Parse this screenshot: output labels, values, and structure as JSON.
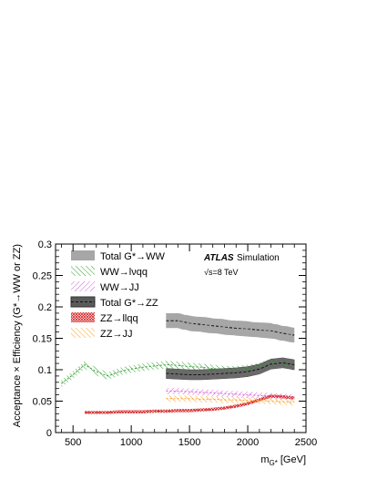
{
  "chart_data": {
    "type": "line",
    "experiment": "ATLAS",
    "label_suffix": "Simulation",
    "energy_label": "√s=8 TeV",
    "xlabel_main": "m",
    "xlabel_sub": "G*",
    "xlabel_unit": "[GeV]",
    "ylabel": "Acceptance × Efficiency (G*→WW or ZZ)",
    "xlim": [
      350,
      2500
    ],
    "ylim": [
      0,
      0.3
    ],
    "xticks": [
      500,
      1000,
      1500,
      2000,
      2500
    ],
    "yticks": [
      0,
      0.05,
      0.1,
      0.15,
      0.2,
      0.25,
      0.3
    ],
    "ytick_labels": [
      "0",
      "0.05",
      "0.1",
      "0.15",
      "0.2",
      "0.25",
      "0.3"
    ],
    "legend_position": "top-left",
    "series": [
      {
        "name": "Total G*→WW",
        "color": "#222222",
        "style": "hatched-band",
        "x": [
          1300,
          1400,
          1500,
          1600,
          1700,
          1800,
          1900,
          2000,
          2100,
          2200,
          2300,
          2400
        ],
        "y": [
          0.178,
          0.178,
          0.174,
          0.172,
          0.17,
          0.168,
          0.166,
          0.165,
          0.163,
          0.162,
          0.158,
          0.155
        ],
        "err": [
          0.012,
          0.012,
          0.012,
          0.012,
          0.012,
          0.012,
          0.012,
          0.012,
          0.012,
          0.012,
          0.012,
          0.012
        ]
      },
      {
        "name": "WW→lνqq",
        "color": "#2ca02c",
        "style": "hatched-band",
        "x": [
          400,
          500,
          600,
          700,
          800,
          900,
          1000,
          1100,
          1200,
          1300,
          1400,
          1500,
          1600,
          1700,
          1800,
          1900,
          2000,
          2100,
          2200,
          2300,
          2400
        ],
        "y": [
          0.078,
          0.092,
          0.108,
          0.097,
          0.09,
          0.097,
          0.101,
          0.104,
          0.106,
          0.108,
          0.107,
          0.105,
          0.104,
          0.102,
          0.1,
          0.1,
          0.102,
          0.105,
          0.112,
          0.11,
          0.105
        ],
        "err": [
          0.006,
          0.006,
          0.006,
          0.006,
          0.006,
          0.006,
          0.006,
          0.006,
          0.006,
          0.006,
          0.006,
          0.006,
          0.006,
          0.006,
          0.006,
          0.006,
          0.006,
          0.006,
          0.006,
          0.006,
          0.006
        ]
      },
      {
        "name": "WW→JJ",
        "color": "#d65fd6",
        "style": "hatched-band",
        "x": [
          1300,
          1400,
          1500,
          1600,
          1700,
          1800,
          1900,
          2000,
          2100,
          2200,
          2300,
          2400
        ],
        "y": [
          0.066,
          0.066,
          0.065,
          0.064,
          0.063,
          0.062,
          0.061,
          0.06,
          0.059,
          0.058,
          0.057,
          0.056
        ],
        "err": [
          0.005,
          0.005,
          0.005,
          0.005,
          0.005,
          0.005,
          0.005,
          0.005,
          0.005,
          0.005,
          0.005,
          0.005
        ]
      },
      {
        "name": "Total G*→ZZ",
        "color": "#444444",
        "style": "filled-band",
        "x": [
          1300,
          1400,
          1500,
          1600,
          1700,
          1800,
          1900,
          2000,
          2100,
          2200,
          2300,
          2400
        ],
        "y": [
          0.094,
          0.093,
          0.092,
          0.092,
          0.093,
          0.094,
          0.095,
          0.097,
          0.101,
          0.109,
          0.111,
          0.108
        ],
        "err": [
          0.008,
          0.008,
          0.008,
          0.008,
          0.008,
          0.008,
          0.008,
          0.008,
          0.008,
          0.008,
          0.008,
          0.008
        ]
      },
      {
        "name": "ZZ→llqq",
        "color": "#d62728",
        "style": "hatched-band",
        "x": [
          600,
          700,
          800,
          900,
          1000,
          1100,
          1200,
          1300,
          1400,
          1500,
          1600,
          1700,
          1800,
          1900,
          2000,
          2100,
          2200,
          2300,
          2400
        ],
        "y": [
          0.032,
          0.032,
          0.032,
          0.033,
          0.033,
          0.033,
          0.034,
          0.034,
          0.035,
          0.035,
          0.036,
          0.037,
          0.039,
          0.042,
          0.046,
          0.052,
          0.058,
          0.057,
          0.055
        ],
        "err": [
          0.0025,
          0.0025,
          0.0025,
          0.0025,
          0.0025,
          0.0025,
          0.0025,
          0.0025,
          0.0025,
          0.0025,
          0.0025,
          0.0025,
          0.0025,
          0.0025,
          0.0025,
          0.0025,
          0.0025,
          0.0025,
          0.0025
        ]
      },
      {
        "name": "ZZ→JJ",
        "color": "#ff9f1c",
        "style": "hatched-band",
        "x": [
          1300,
          1400,
          1500,
          1600,
          1700,
          1800,
          1900,
          2000,
          2100,
          2200,
          2300,
          2400
        ],
        "y": [
          0.054,
          0.054,
          0.054,
          0.053,
          0.053,
          0.052,
          0.052,
          0.051,
          0.051,
          0.05,
          0.049,
          0.048
        ],
        "err": [
          0.005,
          0.005,
          0.005,
          0.005,
          0.005,
          0.005,
          0.005,
          0.005,
          0.005,
          0.005,
          0.005,
          0.005
        ]
      }
    ]
  }
}
